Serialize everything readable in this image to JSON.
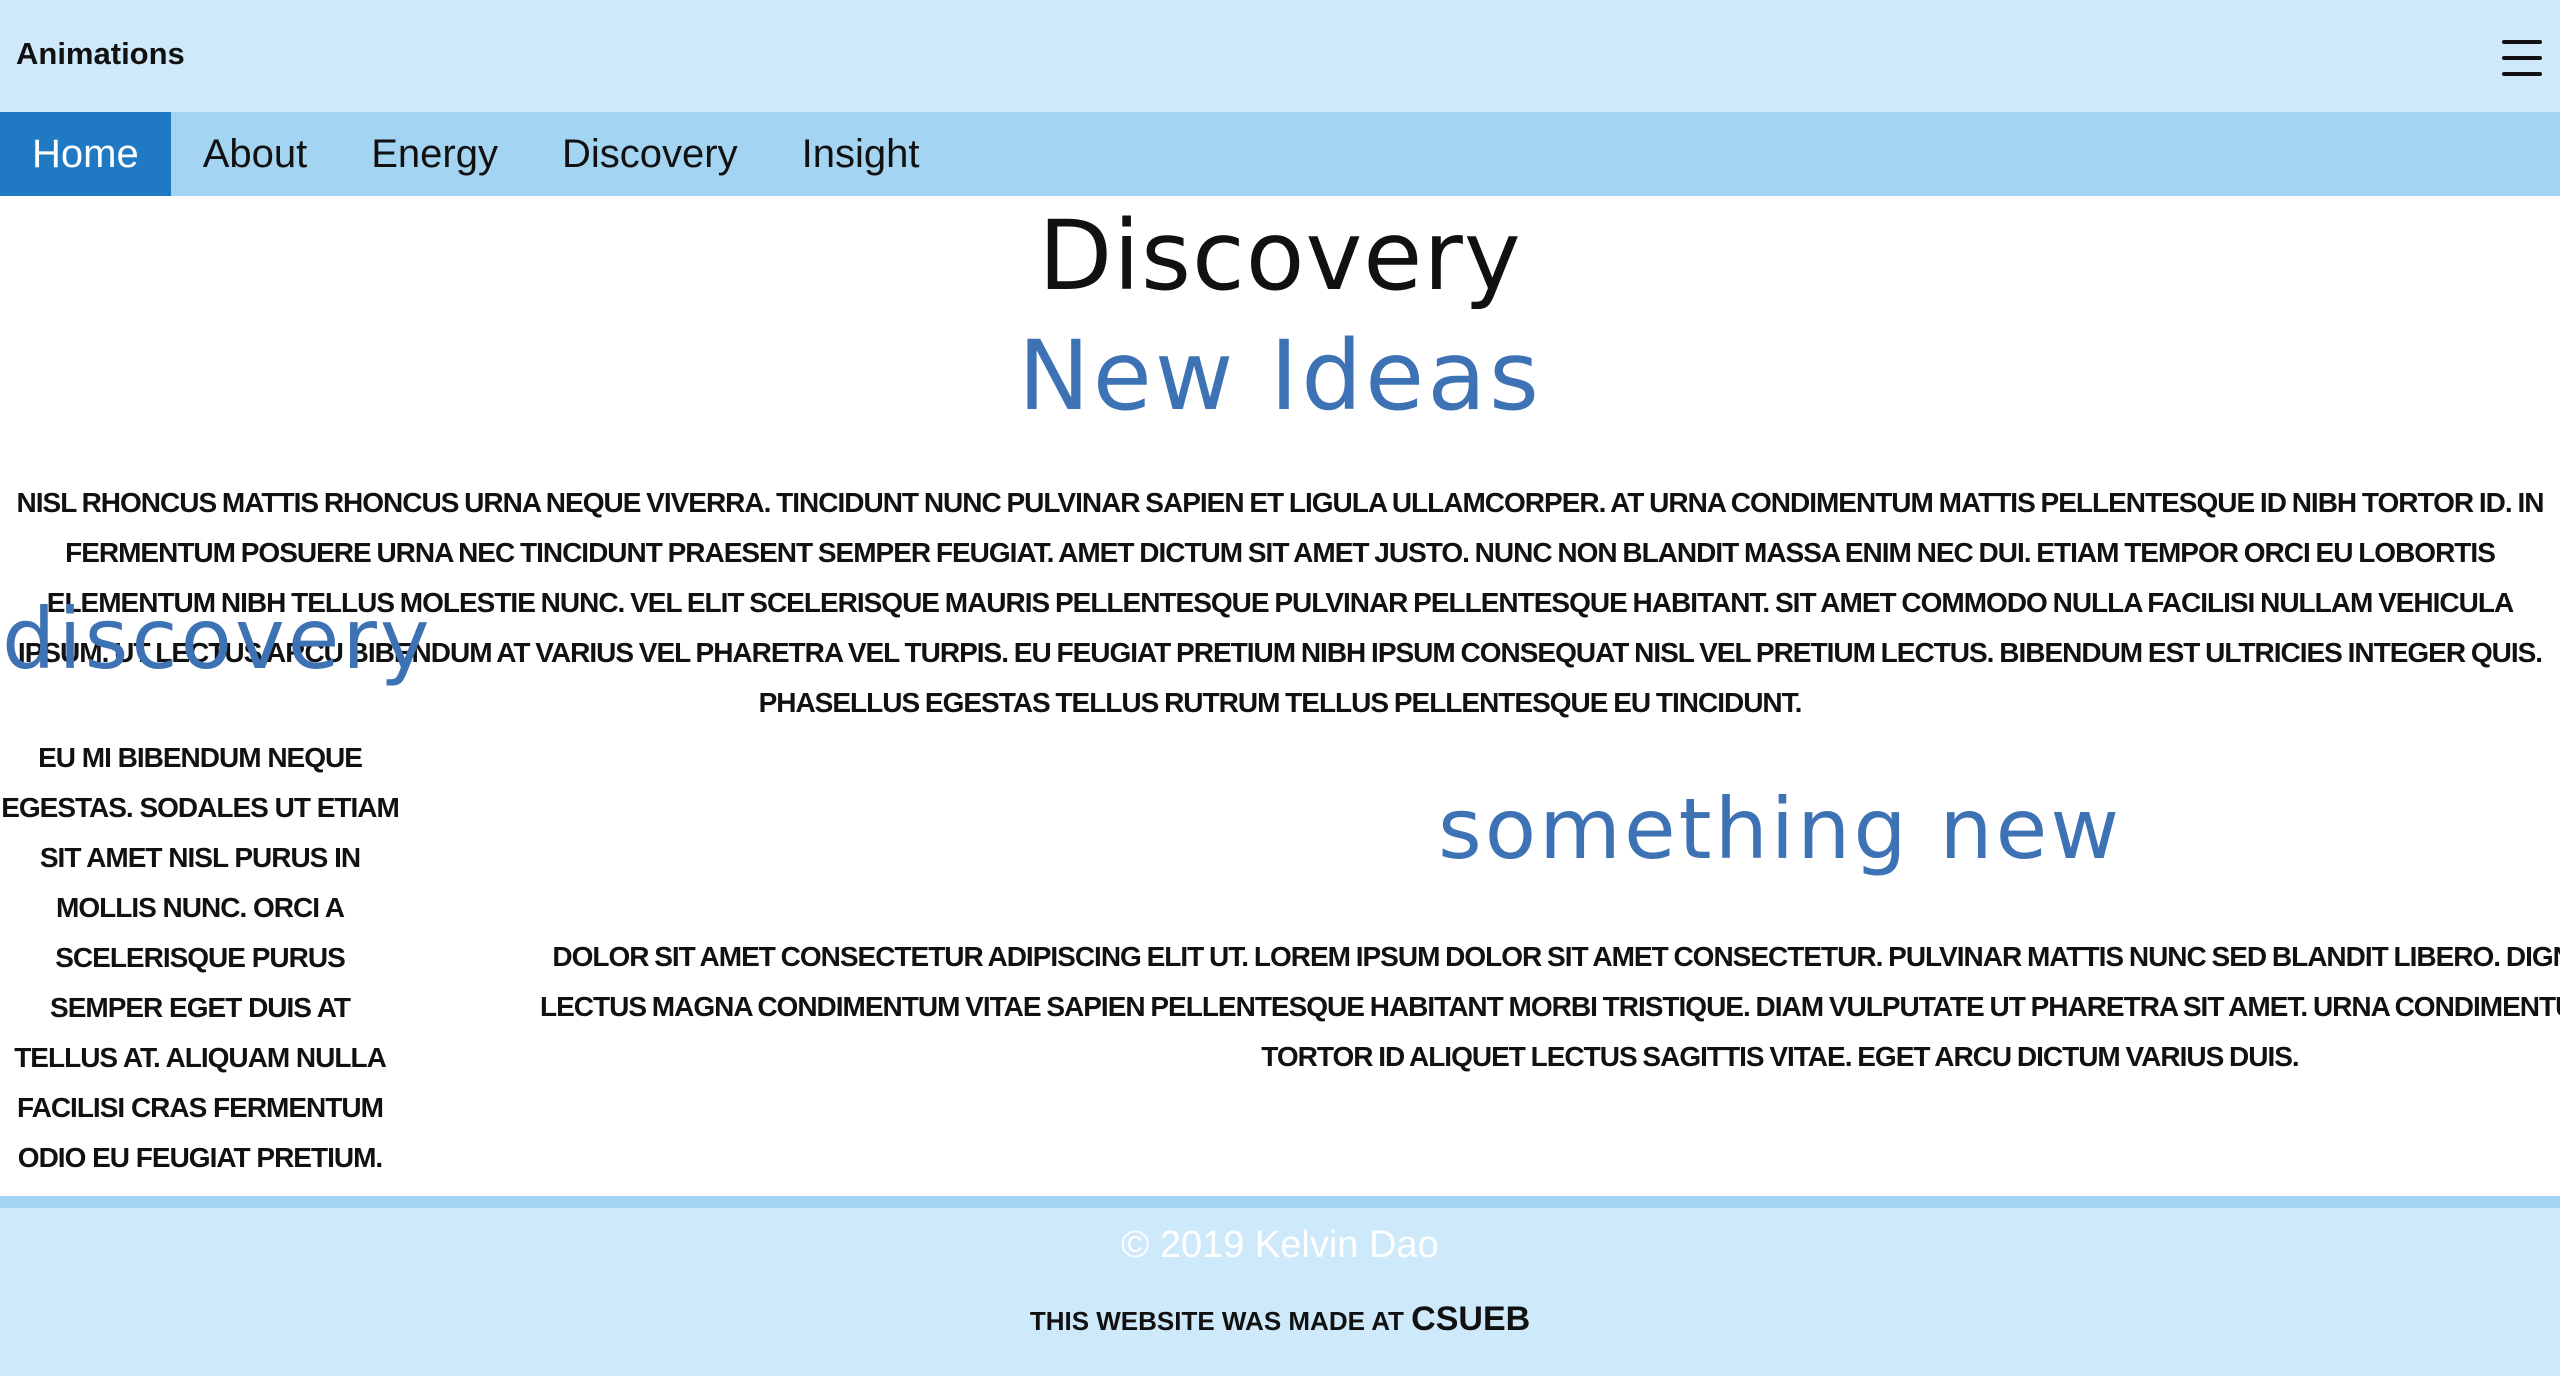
{
  "header": {
    "brand": "Animations",
    "menu_icon": "hamburger-menu-icon"
  },
  "nav": {
    "items": [
      {
        "label": "Home",
        "active": true
      },
      {
        "label": "About"
      },
      {
        "label": "Energy"
      },
      {
        "label": "Discovery"
      },
      {
        "label": "Insight"
      }
    ]
  },
  "main": {
    "title": "Discovery",
    "subtitle": "New Ideas",
    "intro": "Nisl rhoncus mattis rhoncus urna neque viverra. Tincidunt nunc pulvinar sapien et ligula ullamcorper. At urna condimentum mattis pellentesque id nibh tortor id. In fermentum posuere urna nec tincidunt praesent semper feugiat. Amet dictum sit amet justo. Nunc non blandit massa enim nec dui. Etiam tempor orci eu lobortis elementum nibh tellus molestie nunc. Vel elit scelerisque mauris pellentesque pulvinar pellentesque habitant. Sit amet commodo nulla facilisi nullam vehicula ipsum. Ut lectus arcu bibendum at varius vel pharetra vel turpis. Eu feugiat pretium nibh ipsum consequat nisl vel pretium lectus. Bibendum est ultricies integer quis. Phasellus egestas tellus rutrum tellus pellentesque eu tincidunt.",
    "discovery_heading": "discovery",
    "discovery_text": "Eu mi bibendum neque egestas. Sodales ut etiam sit amet nisl purus in mollis nunc. Orci a scelerisque purus semper eget duis at tellus at. Aliquam nulla facilisi cras fermentum odio eu feugiat pretium. Arcu ac tortor dignissim convallis aenean et tortor at risus. Pellentesque pulvinar pellentesque habitant",
    "something_heading": "something new",
    "something_text": "Dolor sit amet consectetur adipiscing elit ut. Lorem ipsum dolor sit amet consectetur. Pulvinar mattis nunc sed blandit libero. Dignissim diam quis enim lobortis. Lectus magna condimentum vitae sapien pellentesque habitant morbi tristique. Diam vulputate ut pharetra sit amet. Urna condimentum mattis pellentesque id nibh tortor id aliquet lectus sagittis vitae. Eget arcu dictum varius duis."
  },
  "footer": {
    "copyright": "© 2019 Kelvin Dao",
    "made_at_prefix": "This website was made at",
    "made_at_org": "CSUEB"
  },
  "colors": {
    "header_bg": "#cde9fa",
    "nav_bg": "#a3d5f3",
    "nav_active": "#2079c3",
    "heading_accent": "#3d72b4"
  }
}
